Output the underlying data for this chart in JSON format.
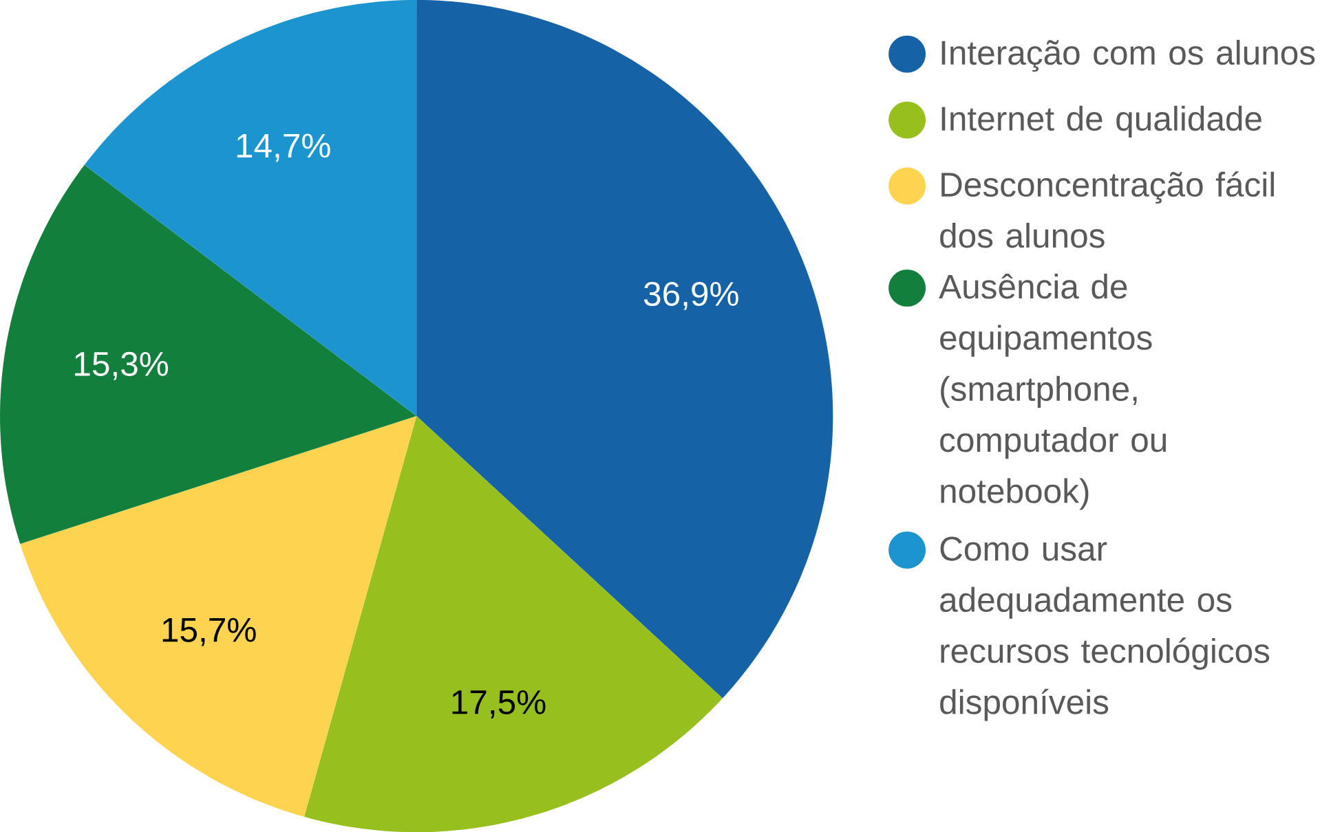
{
  "chart_data": {
    "type": "pie",
    "categories": [
      "Interação com os alunos",
      "Internet de qualidade",
      "Desconcentração fácil dos alunos",
      "Ausência de equipamentos (smartphone, computador ou notebook)",
      "Como usar adequadamente os recursos tecnológicos disponíveis"
    ],
    "values": [
      36.9,
      17.5,
      15.7,
      15.3,
      14.7
    ],
    "value_labels": [
      "36,9%",
      "17,5%",
      "15,7%",
      "15,3%",
      "14,7%"
    ],
    "colors": [
      "#1563a6",
      "#97bf1e",
      "#fdd34f",
      "#137f3d",
      "#1b94cf"
    ],
    "legend": "right"
  }
}
